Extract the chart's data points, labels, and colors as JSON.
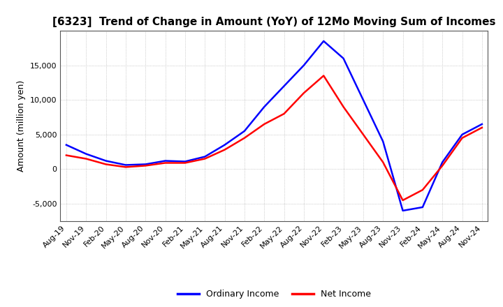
{
  "title": "[6323]  Trend of Change in Amount (YoY) of 12Mo Moving Sum of Incomes",
  "ylabel": "Amount (million yen)",
  "ylim": [
    -7500,
    20000
  ],
  "yticks": [
    -5000,
    0,
    5000,
    10000,
    15000
  ],
  "legend_labels": [
    "Ordinary Income",
    "Net Income"
  ],
  "line_colors": [
    "blue",
    "red"
  ],
  "x_labels": [
    "Aug-19",
    "Nov-19",
    "Feb-20",
    "May-20",
    "Aug-20",
    "Nov-20",
    "Feb-21",
    "May-21",
    "Aug-21",
    "Nov-21",
    "Feb-22",
    "May-22",
    "Aug-22",
    "Nov-22",
    "Feb-23",
    "May-23",
    "Aug-23",
    "Nov-23",
    "Feb-24",
    "May-24",
    "Aug-24",
    "Nov-24"
  ],
  "ordinary_income": [
    3500,
    2200,
    1200,
    600,
    700,
    1200,
    1100,
    1800,
    3500,
    5500,
    9000,
    12000,
    15000,
    18500,
    16000,
    10000,
    4000,
    -6000,
    -5500,
    1000,
    5000,
    6500
  ],
  "net_income": [
    2000,
    1500,
    700,
    300,
    500,
    900,
    900,
    1500,
    2800,
    4500,
    6500,
    8000,
    11000,
    13500,
    9000,
    5000,
    1000,
    -4500,
    -3000,
    500,
    4500,
    6000
  ],
  "background_color": "#ffffff",
  "grid_color": "#aaaaaa",
  "title_fontsize": 11,
  "ylabel_fontsize": 9,
  "tick_fontsize": 8,
  "legend_fontsize": 9,
  "line_width": 1.8
}
